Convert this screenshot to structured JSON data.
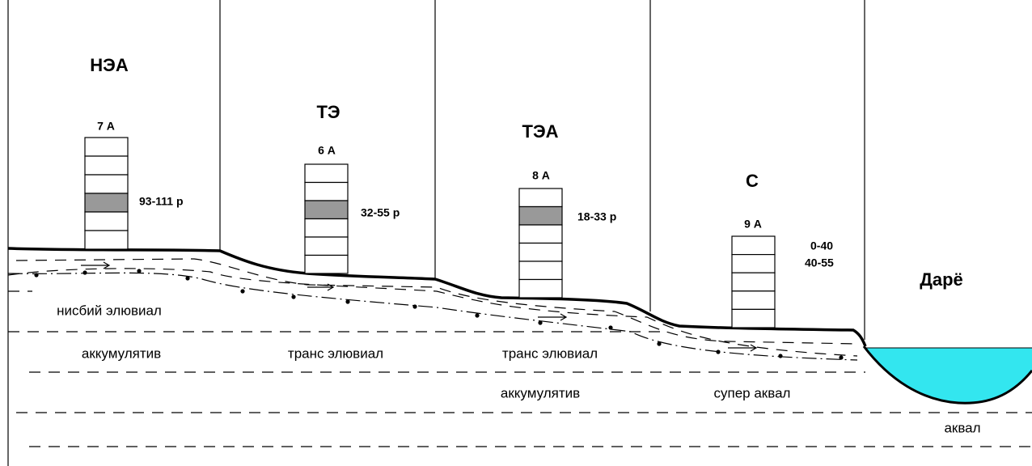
{
  "zones": [
    "НЭА",
    "ТЭ",
    "ТЭА",
    "С",
    "Дарё"
  ],
  "columns": [
    {
      "label": "7 А",
      "ranges": [
        "93-111 р"
      ]
    },
    {
      "label": "6 А",
      "ranges": [
        "32-55 р"
      ]
    },
    {
      "label": "8 А",
      "ranges": [
        "18-33 р"
      ]
    },
    {
      "label": "9 А",
      "ranges": [
        "0-40",
        "40-55"
      ]
    }
  ],
  "layers": [
    "нисбий элювиал",
    "аккумулятив",
    "транс элювиал",
    "транс элювиал",
    "аккумулятив",
    "супер аквал",
    "аквал"
  ]
}
